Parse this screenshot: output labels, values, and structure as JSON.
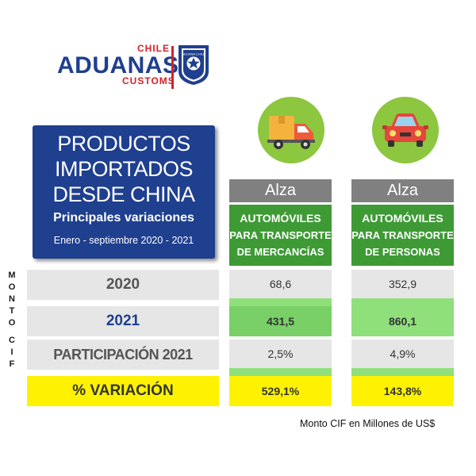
{
  "logo": {
    "top_word": "CHILE",
    "main_word": "ADUANAS",
    "bottom_word": "CUSTOMS",
    "badge_text": "ADUANA CHILE"
  },
  "title_box": {
    "line1": "PRODUCTOS",
    "line2": "IMPORTADOS",
    "line3": "DESDE CHINA",
    "subtitle": "Principales variaciones",
    "period": "Enero - septiembre 2020 - 2021"
  },
  "vertical_label": {
    "part1": [
      "M",
      "O",
      "N",
      "T",
      "O"
    ],
    "part2": [
      "C",
      "I",
      "F"
    ]
  },
  "columns": [
    {
      "icon": "delivery-truck-icon",
      "trend": "Alza",
      "line1": "AUTOMÓVILES",
      "line2": "PARA TRANSPORTE",
      "line3": "DE MERCANCÍAS"
    },
    {
      "icon": "car-icon",
      "trend": "Alza",
      "line1": "AUTOMÓVILES",
      "line2": "PARA TRANSPORTE",
      "line3": "DE PERSONAS"
    }
  ],
  "rows": [
    {
      "label": "2020",
      "values": [
        "68,6",
        "352,9"
      ]
    },
    {
      "label": "2021",
      "values": [
        "431,5",
        "860,1"
      ]
    },
    {
      "label": "PARTICIPACIÓN 2021",
      "values": [
        "2,5%",
        "4,9%"
      ]
    },
    {
      "label": "% VARIACIÓN",
      "values": [
        "529,1%",
        "143,8%"
      ]
    }
  ],
  "footnote": "Monto CIF en Millones de US$",
  "colors": {
    "navy": "#1f3f8f",
    "red": "#d2232a",
    "green_header": "#3e9a35",
    "light_green": "#8fe07a",
    "gray_header": "#808080",
    "yellow": "#fff200",
    "icon_green": "#8dc63f"
  }
}
